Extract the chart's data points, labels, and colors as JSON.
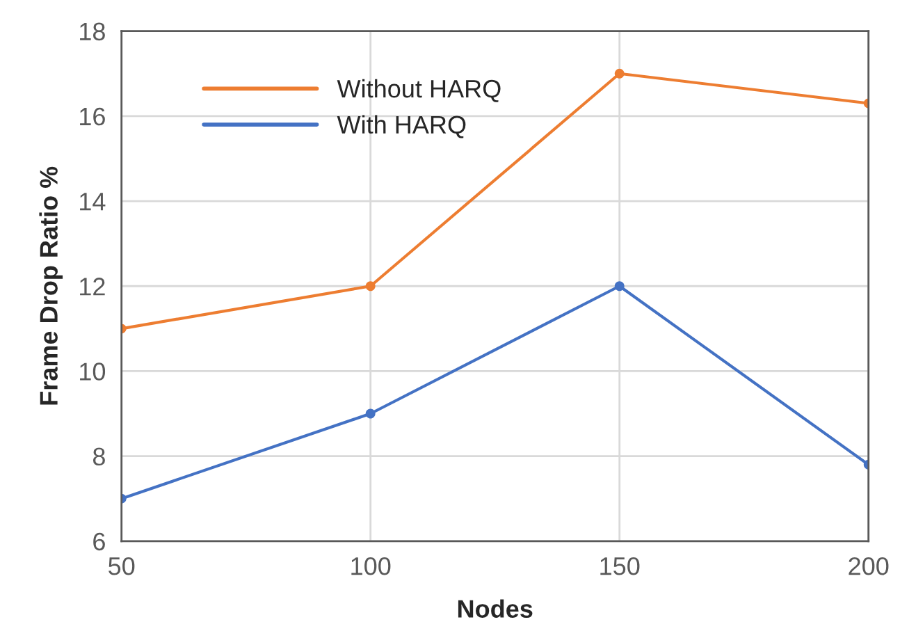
{
  "chart_data": {
    "type": "line",
    "xlabel": "Nodes",
    "ylabel": "Frame Drop Ratio %",
    "x": [
      50,
      100,
      150,
      200
    ],
    "series": [
      {
        "name": "Without HARQ",
        "color": "#ed7d31",
        "values": [
          11,
          12,
          17,
          16.3
        ]
      },
      {
        "name": "With HARQ",
        "color": "#4472c4",
        "values": [
          7,
          9,
          12,
          7.8
        ]
      }
    ],
    "xlim": [
      50,
      200
    ],
    "xticks": [
      50,
      100,
      150,
      200
    ],
    "ylim": [
      6,
      18
    ],
    "yticks": [
      6,
      8,
      10,
      12,
      14,
      16,
      18
    ],
    "grid": true,
    "legend": "top left",
    "marker": "circle",
    "line_style": "solid"
  }
}
